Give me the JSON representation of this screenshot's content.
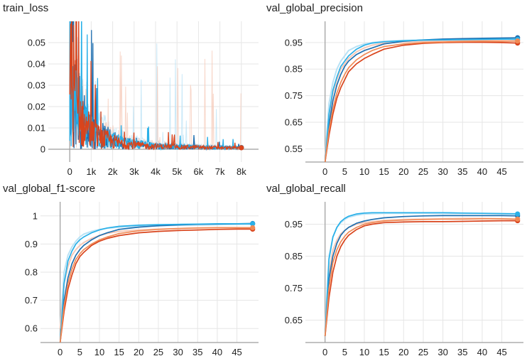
{
  "colors": {
    "dark_blue": "#1f6fb0",
    "light_blue": "#29b0e8",
    "red": "#d9441c",
    "orange": "#f08a55",
    "ghost_blue": "#b9e2f5",
    "ghost_red": "#f6c9b8",
    "grid": "#e6e6e6",
    "axis": "#9e9e9e"
  },
  "chart_data": [
    {
      "type": "line",
      "title": "train_loss",
      "xlim": [
        -1000,
        8800
      ],
      "ylim": [
        -0.006,
        0.06
      ],
      "xticks": [
        0,
        1000,
        2000,
        3000,
        4000,
        5000,
        6000,
        7000,
        8000
      ],
      "xtick_labels": [
        "0",
        "1k",
        "2k",
        "3k",
        "4k",
        "5k",
        "6k",
        "7k",
        "8k"
      ],
      "yticks": [
        0,
        0.01,
        0.02,
        0.03,
        0.04,
        0.05
      ],
      "ytick_labels": [
        "0",
        "0.01",
        "0.02",
        "0.03",
        "0.04",
        "0.05"
      ],
      "grid": true,
      "noisy": true,
      "series": [
        {
          "color_key": "dark_blue",
          "x": [
            0,
            300,
            600,
            1000,
            1500,
            2000,
            2500,
            3000,
            3500,
            4000,
            5000,
            6000,
            7000,
            8000
          ],
          "y": [
            0.06,
            0.03,
            0.018,
            0.012,
            0.008,
            0.0055,
            0.004,
            0.003,
            0.0024,
            0.002,
            0.0015,
            0.0012,
            0.001,
            0.0008
          ]
        },
        {
          "color_key": "light_blue",
          "x": [
            0,
            300,
            600,
            1000,
            1500,
            2000,
            2500,
            3000,
            3500,
            4000,
            5000,
            6000,
            7000,
            8000
          ],
          "y": [
            0.06,
            0.028,
            0.016,
            0.011,
            0.0075,
            0.005,
            0.0038,
            0.003,
            0.0024,
            0.0019,
            0.0015,
            0.0012,
            0.001,
            0.0008
          ]
        },
        {
          "color_key": "red",
          "x": [
            0,
            300,
            600,
            1000,
            1500,
            2000,
            2500,
            3000,
            3500,
            4000,
            5000,
            6000,
            7000,
            8000
          ],
          "y": [
            0.06,
            0.026,
            0.015,
            0.009,
            0.0065,
            0.0045,
            0.0033,
            0.0025,
            0.002,
            0.0017,
            0.0013,
            0.0011,
            0.0009,
            0.0007
          ]
        }
      ]
    },
    {
      "type": "line",
      "title": "val_global_precision",
      "xlim": [
        -5,
        50.5
      ],
      "ylim": [
        0.5,
        1.03
      ],
      "xticks": [
        0,
        5,
        10,
        15,
        20,
        25,
        30,
        35,
        40,
        45
      ],
      "xtick_labels": [
        "0",
        "5",
        "10",
        "15",
        "20",
        "25",
        "30",
        "35",
        "40",
        "45"
      ],
      "yticks": [
        0.55,
        0.65,
        0.75,
        0.85,
        0.95
      ],
      "ytick_labels": [
        "0.55",
        "0.65",
        "0.75",
        "0.85",
        "0.95"
      ],
      "grid": true,
      "series": [
        {
          "color_key": "ghost_blue",
          "x": [
            0,
            1,
            2,
            3,
            4,
            5,
            6,
            8,
            10,
            12,
            15,
            20,
            25,
            30,
            35,
            40,
            45,
            49
          ],
          "y": [
            0.52,
            0.72,
            0.8,
            0.85,
            0.88,
            0.9,
            0.92,
            0.935,
            0.945,
            0.95,
            0.955,
            0.958,
            0.96,
            0.962,
            0.963,
            0.964,
            0.966,
            0.967
          ]
        },
        {
          "color_key": "ghost_red",
          "x": [
            0,
            1,
            2,
            3,
            4,
            5,
            6,
            8,
            10,
            12,
            15,
            20,
            25,
            30,
            35,
            40,
            45,
            49
          ],
          "y": [
            0.52,
            0.66,
            0.76,
            0.81,
            0.85,
            0.87,
            0.89,
            0.915,
            0.93,
            0.94,
            0.948,
            0.952,
            0.955,
            0.957,
            0.958,
            0.958,
            0.957,
            0.955
          ]
        },
        {
          "color_key": "dark_blue",
          "x": [
            0,
            1,
            2,
            3,
            4,
            5,
            6,
            8,
            10,
            12,
            15,
            20,
            25,
            30,
            35,
            40,
            45,
            49
          ],
          "y": [
            0.5,
            0.64,
            0.73,
            0.79,
            0.83,
            0.86,
            0.88,
            0.905,
            0.92,
            0.93,
            0.945,
            0.955,
            0.96,
            0.963,
            0.965,
            0.966,
            0.967,
            0.968
          ]
        },
        {
          "color_key": "light_blue",
          "x": [
            0,
            1,
            2,
            3,
            4,
            5,
            6,
            8,
            10,
            12,
            15,
            20,
            25,
            30,
            35,
            40,
            45,
            49
          ],
          "y": [
            0.5,
            0.68,
            0.77,
            0.82,
            0.86,
            0.88,
            0.9,
            0.925,
            0.94,
            0.948,
            0.953,
            0.957,
            0.959,
            0.96,
            0.961,
            0.962,
            0.963,
            0.962
          ]
        },
        {
          "color_key": "red",
          "x": [
            0,
            1,
            2,
            3,
            4,
            5,
            6,
            8,
            10,
            12,
            15,
            20,
            25,
            30,
            35,
            40,
            45,
            49
          ],
          "y": [
            0.5,
            0.6,
            0.68,
            0.74,
            0.78,
            0.81,
            0.84,
            0.87,
            0.89,
            0.905,
            0.925,
            0.94,
            0.947,
            0.95,
            0.951,
            0.951,
            0.95,
            0.948
          ]
        },
        {
          "color_key": "orange",
          "x": [
            0,
            1,
            2,
            3,
            4,
            5,
            6,
            8,
            10,
            12,
            15,
            20,
            25,
            30,
            35,
            40,
            45,
            49
          ],
          "y": [
            0.5,
            0.62,
            0.7,
            0.76,
            0.8,
            0.83,
            0.855,
            0.885,
            0.905,
            0.92,
            0.935,
            0.945,
            0.95,
            0.952,
            0.954,
            0.955,
            0.955,
            0.956
          ]
        }
      ]
    },
    {
      "type": "line",
      "title": "val_global_f1-score",
      "xlim": [
        -5,
        50.5
      ],
      "ylim": [
        0.55,
        1.05
      ],
      "xticks": [
        0,
        5,
        10,
        15,
        20,
        25,
        30,
        35,
        40,
        45
      ],
      "xtick_labels": [
        "0",
        "5",
        "10",
        "15",
        "20",
        "25",
        "30",
        "35",
        "40",
        "45"
      ],
      "yticks": [
        0.6,
        0.7,
        0.8,
        0.9,
        1
      ],
      "ytick_labels": [
        "0.6",
        "0.7",
        "0.8",
        "0.9",
        "1"
      ],
      "grid": true,
      "series": [
        {
          "color_key": "ghost_blue",
          "x": [
            0,
            1,
            2,
            3,
            4,
            5,
            6,
            8,
            10,
            12,
            15,
            20,
            25,
            30,
            35,
            40,
            45,
            49
          ],
          "y": [
            0.6,
            0.8,
            0.86,
            0.89,
            0.91,
            0.925,
            0.935,
            0.945,
            0.952,
            0.956,
            0.96,
            0.963,
            0.965,
            0.967,
            0.968,
            0.969,
            0.97,
            0.97
          ]
        },
        {
          "color_key": "ghost_red",
          "x": [
            0,
            1,
            2,
            3,
            4,
            5,
            6,
            8,
            10,
            12,
            15,
            20,
            25,
            30,
            35,
            40,
            45,
            49
          ],
          "y": [
            0.6,
            0.76,
            0.82,
            0.86,
            0.88,
            0.895,
            0.905,
            0.92,
            0.93,
            0.938,
            0.945,
            0.95,
            0.953,
            0.955,
            0.957,
            0.958,
            0.958,
            0.957
          ]
        },
        {
          "color_key": "dark_blue",
          "x": [
            0,
            1,
            2,
            3,
            4,
            5,
            6,
            8,
            10,
            12,
            15,
            20,
            25,
            30,
            35,
            40,
            45,
            49
          ],
          "y": [
            0.55,
            0.7,
            0.78,
            0.83,
            0.86,
            0.88,
            0.895,
            0.915,
            0.93,
            0.94,
            0.952,
            0.96,
            0.965,
            0.968,
            0.97,
            0.971,
            0.972,
            0.973
          ]
        },
        {
          "color_key": "light_blue",
          "x": [
            0,
            1,
            2,
            3,
            4,
            5,
            6,
            8,
            10,
            12,
            15,
            20,
            25,
            30,
            35,
            40,
            45,
            49
          ],
          "y": [
            0.55,
            0.76,
            0.84,
            0.875,
            0.9,
            0.915,
            0.925,
            0.94,
            0.95,
            0.957,
            0.963,
            0.967,
            0.969,
            0.97,
            0.971,
            0.972,
            0.972,
            0.972
          ]
        },
        {
          "color_key": "red",
          "x": [
            0,
            1,
            2,
            3,
            4,
            5,
            6,
            8,
            10,
            12,
            15,
            20,
            25,
            30,
            35,
            40,
            45,
            49
          ],
          "y": [
            0.55,
            0.66,
            0.74,
            0.79,
            0.83,
            0.855,
            0.87,
            0.895,
            0.91,
            0.92,
            0.93,
            0.94,
            0.945,
            0.948,
            0.95,
            0.952,
            0.953,
            0.953
          ]
        },
        {
          "color_key": "orange",
          "x": [
            0,
            1,
            2,
            3,
            4,
            5,
            6,
            8,
            10,
            12,
            15,
            20,
            25,
            30,
            35,
            40,
            45,
            49
          ],
          "y": [
            0.55,
            0.68,
            0.76,
            0.81,
            0.845,
            0.865,
            0.88,
            0.9,
            0.915,
            0.925,
            0.937,
            0.947,
            0.952,
            0.955,
            0.957,
            0.958,
            0.958,
            0.958
          ]
        }
      ]
    },
    {
      "type": "line",
      "title": "val_global_recall",
      "xlim": [
        -5,
        50.5
      ],
      "ylim": [
        0.58,
        1.02
      ],
      "xticks": [
        0,
        5,
        10,
        15,
        20,
        25,
        30,
        35,
        40,
        45
      ],
      "xtick_labels": [
        "0",
        "5",
        "10",
        "15",
        "20",
        "25",
        "30",
        "35",
        "40",
        "45"
      ],
      "yticks": [
        0.65,
        0.75,
        0.85,
        0.95
      ],
      "ytick_labels": [
        "0.65",
        "0.75",
        "0.85",
        "0.95"
      ],
      "grid": true,
      "series": [
        {
          "color_key": "ghost_blue",
          "x": [
            0,
            1,
            2,
            3,
            4,
            5,
            6,
            8,
            10,
            12,
            15,
            20,
            25,
            30,
            35,
            40,
            45,
            49
          ],
          "y": [
            0.62,
            0.85,
            0.91,
            0.94,
            0.955,
            0.965,
            0.972,
            0.978,
            0.982,
            0.983,
            0.984,
            0.984,
            0.984,
            0.984,
            0.984,
            0.984,
            0.984,
            0.983
          ]
        },
        {
          "color_key": "ghost_red",
          "x": [
            0,
            1,
            2,
            3,
            4,
            5,
            6,
            8,
            10,
            12,
            15,
            20,
            25,
            30,
            35,
            40,
            45,
            49
          ],
          "y": [
            0.62,
            0.8,
            0.87,
            0.9,
            0.92,
            0.93,
            0.94,
            0.95,
            0.955,
            0.958,
            0.962,
            0.965,
            0.966,
            0.967,
            0.968,
            0.968,
            0.967,
            0.965
          ]
        },
        {
          "color_key": "dark_blue",
          "x": [
            0,
            1,
            2,
            3,
            4,
            5,
            6,
            8,
            10,
            12,
            15,
            20,
            25,
            30,
            35,
            40,
            45,
            49
          ],
          "y": [
            0.6,
            0.78,
            0.85,
            0.89,
            0.915,
            0.93,
            0.94,
            0.953,
            0.96,
            0.965,
            0.97,
            0.974,
            0.976,
            0.977,
            0.977,
            0.977,
            0.977,
            0.976
          ]
        },
        {
          "color_key": "light_blue",
          "x": [
            0,
            1,
            2,
            3,
            4,
            5,
            6,
            8,
            10,
            12,
            15,
            20,
            25,
            30,
            35,
            40,
            45,
            49
          ],
          "y": [
            0.6,
            0.84,
            0.91,
            0.94,
            0.958,
            0.968,
            0.975,
            0.982,
            0.985,
            0.986,
            0.986,
            0.986,
            0.986,
            0.986,
            0.985,
            0.984,
            0.983,
            0.982
          ]
        },
        {
          "color_key": "red",
          "x": [
            0,
            1,
            2,
            3,
            4,
            5,
            6,
            8,
            10,
            12,
            15,
            20,
            25,
            30,
            35,
            40,
            45,
            49
          ],
          "y": [
            0.6,
            0.72,
            0.8,
            0.85,
            0.88,
            0.9,
            0.915,
            0.933,
            0.945,
            0.95,
            0.955,
            0.957,
            0.958,
            0.958,
            0.959,
            0.96,
            0.961,
            0.961
          ]
        },
        {
          "color_key": "orange",
          "x": [
            0,
            1,
            2,
            3,
            4,
            5,
            6,
            8,
            10,
            12,
            15,
            20,
            25,
            30,
            35,
            40,
            45,
            49
          ],
          "y": [
            0.6,
            0.75,
            0.83,
            0.87,
            0.895,
            0.912,
            0.925,
            0.94,
            0.95,
            0.955,
            0.96,
            0.963,
            0.965,
            0.966,
            0.966,
            0.967,
            0.967,
            0.966
          ]
        }
      ]
    }
  ]
}
